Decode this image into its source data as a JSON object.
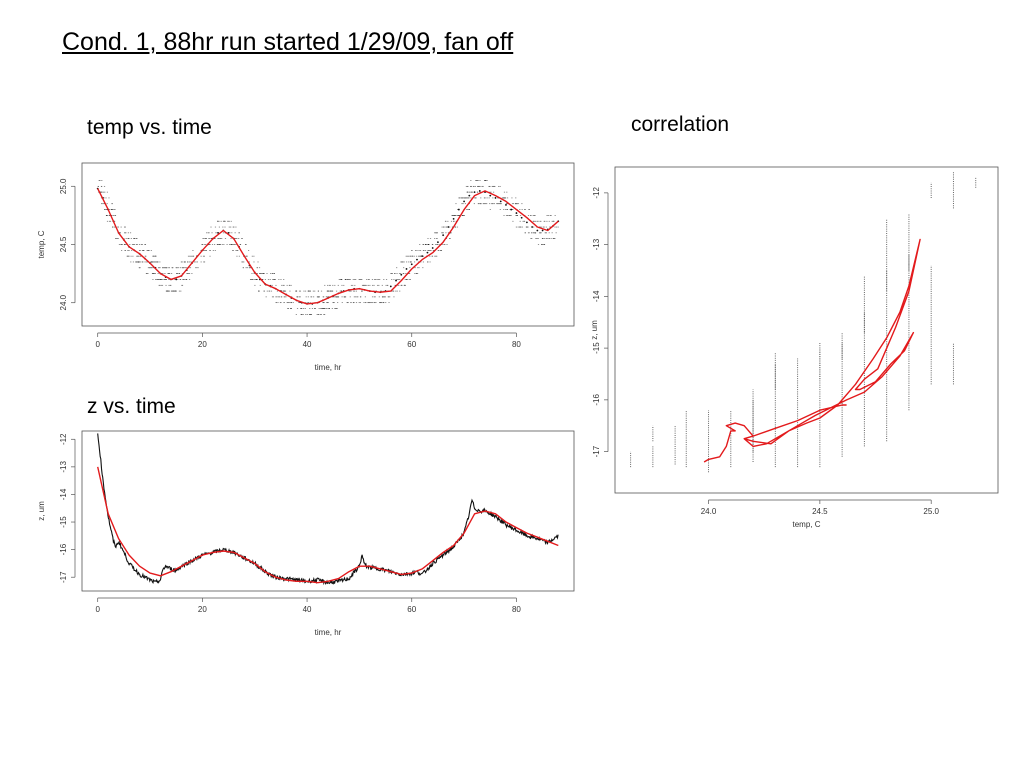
{
  "slide": {
    "title": "Cond. 1, 88hr run started 1/29/09, fan off",
    "captions": {
      "temp_vs_time": "temp vs. time",
      "z_vs_time": "z vs. time",
      "correlation": "correlation"
    }
  },
  "colors": {
    "raw": "#111111",
    "fit": "#e31a1c",
    "frame": "#555555"
  },
  "chart_data": [
    {
      "id": "temp-time",
      "type": "scatter",
      "title": "",
      "xlabel": "time, hr",
      "ylabel": "temp, C",
      "xlim": [
        -3,
        91
      ],
      "ylim": [
        23.8,
        25.2
      ],
      "xticks": [
        0,
        20,
        40,
        60,
        80
      ],
      "yticks": [
        24.0,
        24.5,
        25.0
      ],
      "ytick_labels": [
        "24.0",
        "24.5",
        "25.0"
      ],
      "series": [
        {
          "kind": "raw-points",
          "x": [
            0,
            1,
            2,
            3,
            4,
            5,
            6,
            7,
            8,
            9,
            10,
            11,
            12,
            13,
            14,
            15,
            16,
            17,
            18,
            19,
            20,
            21,
            22,
            23,
            24,
            25,
            26,
            27,
            28,
            29,
            30,
            31,
            32,
            33,
            34,
            35,
            36,
            37,
            38,
            39,
            40,
            41,
            42,
            43,
            44,
            45,
            46,
            47,
            48,
            49,
            50,
            51,
            52,
            53,
            54,
            55,
            56,
            57,
            58,
            59,
            60,
            61,
            62,
            63,
            64,
            65,
            66,
            67,
            68,
            69,
            70,
            71,
            72,
            73,
            74,
            75,
            76,
            77,
            78,
            79,
            80,
            81,
            82,
            83,
            84,
            85,
            86,
            87,
            88
          ],
          "y": [
            24.98,
            24.9,
            24.8,
            24.7,
            24.6,
            24.54,
            24.48,
            24.45,
            24.42,
            24.38,
            24.34,
            24.3,
            24.25,
            24.22,
            24.2,
            24.2,
            24.23,
            24.28,
            24.34,
            24.4,
            24.45,
            24.5,
            24.55,
            24.6,
            24.62,
            24.6,
            24.55,
            24.48,
            24.4,
            24.32,
            24.26,
            24.2,
            24.16,
            24.14,
            24.12,
            24.1,
            24.07,
            24.04,
            24.02,
            24.0,
            23.99,
            23.99,
            24.0,
            24.02,
            24.04,
            24.06,
            24.08,
            24.1,
            24.11,
            24.12,
            24.12,
            24.11,
            24.1,
            24.09,
            24.09,
            24.1,
            24.14,
            24.19,
            24.24,
            24.29,
            24.33,
            24.37,
            24.4,
            24.43,
            24.47,
            24.52,
            24.58,
            24.65,
            24.72,
            24.8,
            24.87,
            24.92,
            24.95,
            24.96,
            24.95,
            24.92,
            24.9,
            24.87,
            24.84,
            24.8,
            24.77,
            24.73,
            24.69,
            24.65,
            24.62,
            24.62,
            24.63,
            24.66,
            24.7
          ]
        },
        {
          "kind": "fit",
          "x": [
            0,
            2,
            4,
            6,
            8,
            10,
            12,
            14,
            16,
            18,
            20,
            22,
            24,
            26,
            28,
            30,
            32,
            34,
            36,
            38,
            40,
            42,
            44,
            46,
            48,
            50,
            52,
            54,
            56,
            58,
            60,
            62,
            64,
            66,
            68,
            70,
            72,
            74,
            76,
            78,
            80,
            82,
            84,
            86,
            88
          ],
          "y": [
            24.98,
            24.8,
            24.6,
            24.48,
            24.42,
            24.34,
            24.25,
            24.2,
            24.23,
            24.34,
            24.45,
            24.55,
            24.62,
            24.55,
            24.4,
            24.26,
            24.16,
            24.12,
            24.07,
            24.02,
            23.99,
            24.0,
            24.04,
            24.08,
            24.11,
            24.12,
            24.1,
            24.09,
            24.1,
            24.19,
            24.29,
            24.37,
            24.43,
            24.52,
            24.65,
            24.8,
            24.92,
            24.96,
            24.92,
            24.87,
            24.8,
            24.73,
            24.65,
            24.62,
            24.7
          ]
        }
      ]
    },
    {
      "id": "z-time",
      "type": "line",
      "title": "",
      "xlabel": "time, hr",
      "ylabel": "z, um",
      "xlim": [
        -3,
        91
      ],
      "ylim": [
        -17.5,
        -11.7
      ],
      "xticks": [
        0,
        20,
        40,
        60,
        80
      ],
      "yticks": [
        -17,
        -16,
        -15,
        -14,
        -13,
        -12
      ],
      "series": [
        {
          "kind": "raw",
          "x": [
            0,
            0.5,
            1,
            2,
            3,
            3.5,
            4,
            5,
            6,
            8,
            10,
            11,
            12,
            12.5,
            13,
            14,
            15,
            16,
            18,
            20,
            22,
            24,
            26,
            28,
            30,
            32,
            34,
            36,
            38,
            40,
            42,
            44,
            46,
            48,
            50,
            50.5,
            51,
            52,
            54,
            56,
            58,
            60,
            61,
            62,
            64,
            66,
            68,
            70,
            71,
            71.5,
            72,
            73,
            74,
            76,
            78,
            80,
            82,
            84,
            86,
            88
          ],
          "y": [
            -11.8,
            -12.6,
            -13.5,
            -14.8,
            -15.7,
            -15.9,
            -15.7,
            -16.1,
            -16.5,
            -16.9,
            -17.1,
            -17.2,
            -17.1,
            -16.7,
            -16.6,
            -16.7,
            -16.75,
            -16.6,
            -16.4,
            -16.2,
            -16.1,
            -16.0,
            -16.1,
            -16.3,
            -16.5,
            -16.8,
            -17.0,
            -17.05,
            -17.1,
            -17.15,
            -17.1,
            -17.2,
            -17.15,
            -17.05,
            -16.6,
            -16.2,
            -16.55,
            -16.65,
            -16.7,
            -16.8,
            -16.9,
            -16.85,
            -16.8,
            -16.9,
            -16.5,
            -16.2,
            -15.9,
            -15.4,
            -14.7,
            -14.2,
            -14.5,
            -14.6,
            -14.6,
            -14.8,
            -15.1,
            -15.3,
            -15.5,
            -15.6,
            -15.75,
            -15.5
          ]
        },
        {
          "kind": "fit",
          "x": [
            0,
            2,
            4,
            6,
            8,
            10,
            12,
            14,
            16,
            18,
            20,
            22,
            24,
            26,
            28,
            30,
            32,
            34,
            36,
            38,
            40,
            42,
            44,
            46,
            48,
            50,
            52,
            54,
            56,
            58,
            60,
            62,
            64,
            66,
            68,
            70,
            72,
            74,
            76,
            78,
            80,
            82,
            84,
            86,
            88
          ],
          "y": [
            -13.0,
            -14.7,
            -15.6,
            -16.2,
            -16.6,
            -16.85,
            -16.95,
            -16.8,
            -16.6,
            -16.4,
            -16.2,
            -16.1,
            -16.05,
            -16.1,
            -16.3,
            -16.5,
            -16.8,
            -17.0,
            -17.1,
            -17.15,
            -17.15,
            -17.2,
            -17.15,
            -17.05,
            -16.8,
            -16.6,
            -16.6,
            -16.7,
            -16.8,
            -16.9,
            -16.85,
            -16.7,
            -16.4,
            -16.1,
            -15.85,
            -15.4,
            -14.7,
            -14.6,
            -14.7,
            -15.0,
            -15.2,
            -15.4,
            -15.55,
            -15.7,
            -15.85
          ]
        }
      ]
    },
    {
      "id": "correlation",
      "type": "scatter",
      "title": "",
      "xlabel": "temp, C",
      "ylabel": "z, um",
      "xlim": [
        23.58,
        25.3
      ],
      "ylim": [
        -17.8,
        -11.5
      ],
      "xticks": [
        24.0,
        24.5,
        25.0
      ],
      "xtick_labels": [
        "24.0",
        "24.5",
        "25.0"
      ],
      "yticks": [
        -17,
        -16,
        -15,
        -14,
        -13,
        -12
      ],
      "series": [
        {
          "kind": "raw-strips",
          "x": [
            23.65,
            23.75,
            23.75,
            23.85,
            23.9,
            24.0,
            24.1,
            24.2,
            24.2,
            24.3,
            24.3,
            24.4,
            24.5,
            24.5,
            24.6,
            24.6,
            24.7,
            24.7,
            24.8,
            24.8,
            24.9,
            24.9,
            25.0,
            25.0,
            25.1,
            25.1,
            25.2
          ],
          "y_low": [
            -17.3,
            -17.3,
            -16.8,
            -17.25,
            -17.3,
            -17.4,
            -17.3,
            -17.2,
            -17.0,
            -17.3,
            -15.8,
            -17.3,
            -17.3,
            -15.6,
            -17.1,
            -15.2,
            -16.9,
            -14.7,
            -16.8,
            -13.9,
            -16.2,
            -13.5,
            -15.7,
            -12.1,
            -15.7,
            -12.3,
            -11.9
          ],
          "y_high": [
            -17.0,
            -16.9,
            -16.5,
            -16.5,
            -16.2,
            -16.2,
            -16.2,
            -16.0,
            -15.8,
            -15.3,
            -15.1,
            -15.2,
            -15.0,
            -14.9,
            -14.9,
            -14.7,
            -14.3,
            -13.6,
            -13.5,
            -12.5,
            -13.2,
            -12.4,
            -13.4,
            -11.8,
            -14.9,
            -11.6,
            -11.7
          ]
        },
        {
          "kind": "fit",
          "x": [
            23.98,
            24.0,
            24.05,
            24.08,
            24.1,
            24.12,
            24.08,
            24.12,
            24.16,
            24.2,
            24.16,
            24.2,
            24.28,
            24.36,
            24.44,
            24.5,
            24.58,
            24.66,
            24.74,
            24.8,
            24.86,
            24.9,
            24.95,
            24.9,
            24.84,
            24.76,
            24.7,
            24.66,
            24.68,
            24.75,
            24.82,
            24.88,
            24.92,
            24.86,
            24.78,
            24.7,
            24.62,
            24.55,
            24.48,
            24.4,
            24.32,
            24.26,
            24.2,
            24.16,
            24.2,
            24.3,
            24.4,
            24.5,
            24.6,
            24.62
          ],
          "y": [
            -17.2,
            -17.15,
            -17.1,
            -16.9,
            -16.6,
            -16.6,
            -16.5,
            -16.45,
            -16.5,
            -16.7,
            -16.75,
            -16.8,
            -16.85,
            -16.6,
            -16.45,
            -16.35,
            -16.1,
            -15.7,
            -15.2,
            -14.8,
            -14.3,
            -13.8,
            -12.9,
            -13.9,
            -14.6,
            -15.4,
            -15.6,
            -15.8,
            -15.8,
            -15.65,
            -15.3,
            -15.05,
            -14.7,
            -15.15,
            -15.55,
            -15.85,
            -16.0,
            -16.15,
            -16.3,
            -16.5,
            -16.7,
            -16.85,
            -16.9,
            -16.75,
            -16.7,
            -16.55,
            -16.4,
            -16.2,
            -16.1,
            -16.1
          ]
        }
      ]
    }
  ]
}
